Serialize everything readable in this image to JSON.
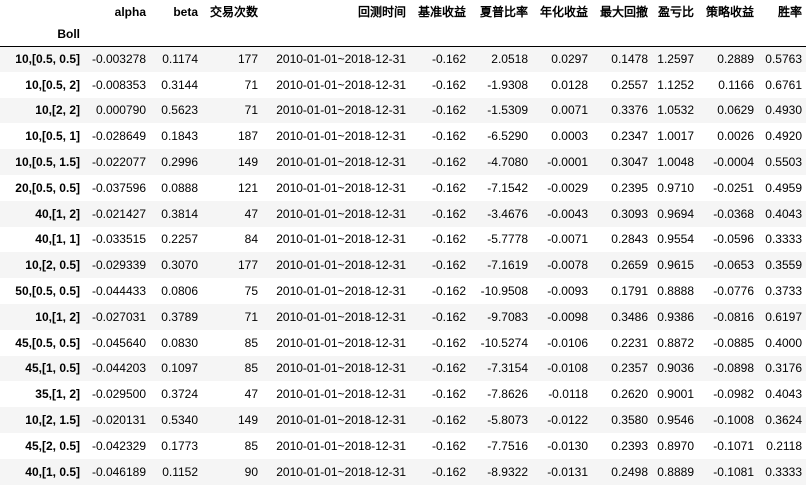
{
  "table": {
    "columns": [
      "alpha",
      "beta",
      "交易次数",
      "回测时间",
      "基准收益",
      "夏普比率",
      "年化收益",
      "最大回撤",
      "盈亏比",
      "策略收益",
      "胜率"
    ],
    "index_name": "Boll",
    "rows": [
      {
        "index": "10,[0.5, 0.5]",
        "cells": [
          "-0.003278",
          "0.1174",
          "177",
          "2010-01-01~2018-12-31",
          "-0.162",
          "2.0518",
          "0.0297",
          "0.1478",
          "1.2597",
          "0.2889",
          "0.5763"
        ]
      },
      {
        "index": "10,[0.5, 2]",
        "cells": [
          "-0.008353",
          "0.3144",
          "71",
          "2010-01-01~2018-12-31",
          "-0.162",
          "-1.9308",
          "0.0128",
          "0.2557",
          "1.1252",
          "0.1166",
          "0.6761"
        ]
      },
      {
        "index": "10,[2, 2]",
        "cells": [
          "0.000790",
          "0.5623",
          "71",
          "2010-01-01~2018-12-31",
          "-0.162",
          "-1.5309",
          "0.0071",
          "0.3376",
          "1.0532",
          "0.0629",
          "0.4930"
        ]
      },
      {
        "index": "10,[0.5, 1]",
        "cells": [
          "-0.028649",
          "0.1843",
          "187",
          "2010-01-01~2018-12-31",
          "-0.162",
          "-6.5290",
          "0.0003",
          "0.2347",
          "1.0017",
          "0.0026",
          "0.4920"
        ]
      },
      {
        "index": "10,[0.5, 1.5]",
        "cells": [
          "-0.022077",
          "0.2996",
          "149",
          "2010-01-01~2018-12-31",
          "-0.162",
          "-4.7080",
          "-0.0001",
          "0.3047",
          "1.0048",
          "-0.0004",
          "0.5503"
        ]
      },
      {
        "index": "20,[0.5, 0.5]",
        "cells": [
          "-0.037596",
          "0.0888",
          "121",
          "2010-01-01~2018-12-31",
          "-0.162",
          "-7.1542",
          "-0.0029",
          "0.2395",
          "0.9710",
          "-0.0251",
          "0.4959"
        ]
      },
      {
        "index": "40,[1, 2]",
        "cells": [
          "-0.021427",
          "0.3814",
          "47",
          "2010-01-01~2018-12-31",
          "-0.162",
          "-3.4676",
          "-0.0043",
          "0.3093",
          "0.9694",
          "-0.0368",
          "0.4043"
        ]
      },
      {
        "index": "40,[1, 1]",
        "cells": [
          "-0.033515",
          "0.2257",
          "84",
          "2010-01-01~2018-12-31",
          "-0.162",
          "-5.7778",
          "-0.0071",
          "0.2843",
          "0.9554",
          "-0.0596",
          "0.3333"
        ]
      },
      {
        "index": "10,[2, 0.5]",
        "cells": [
          "-0.029339",
          "0.3070",
          "177",
          "2010-01-01~2018-12-31",
          "-0.162",
          "-7.1619",
          "-0.0078",
          "0.2659",
          "0.9615",
          "-0.0653",
          "0.3559"
        ]
      },
      {
        "index": "50,[0.5, 0.5]",
        "cells": [
          "-0.044433",
          "0.0806",
          "75",
          "2010-01-01~2018-12-31",
          "-0.162",
          "-10.9508",
          "-0.0093",
          "0.1791",
          "0.8888",
          "-0.0776",
          "0.3733"
        ]
      },
      {
        "index": "10,[1, 2]",
        "cells": [
          "-0.027031",
          "0.3789",
          "71",
          "2010-01-01~2018-12-31",
          "-0.162",
          "-9.7083",
          "-0.0098",
          "0.3486",
          "0.9386",
          "-0.0816",
          "0.6197"
        ]
      },
      {
        "index": "45,[0.5, 0.5]",
        "cells": [
          "-0.045640",
          "0.0830",
          "85",
          "2010-01-01~2018-12-31",
          "-0.162",
          "-10.5274",
          "-0.0106",
          "0.2231",
          "0.8872",
          "-0.0885",
          "0.4000"
        ]
      },
      {
        "index": "45,[1, 0.5]",
        "cells": [
          "-0.044203",
          "0.1097",
          "85",
          "2010-01-01~2018-12-31",
          "-0.162",
          "-7.3154",
          "-0.0108",
          "0.2357",
          "0.9036",
          "-0.0898",
          "0.3176"
        ]
      },
      {
        "index": "35,[1, 2]",
        "cells": [
          "-0.029500",
          "0.3724",
          "47",
          "2010-01-01~2018-12-31",
          "-0.162",
          "-7.8626",
          "-0.0118",
          "0.2620",
          "0.9001",
          "-0.0982",
          "0.4043"
        ]
      },
      {
        "index": "10,[2, 1.5]",
        "cells": [
          "-0.020131",
          "0.5340",
          "149",
          "2010-01-01~2018-12-31",
          "-0.162",
          "-5.8073",
          "-0.0122",
          "0.3580",
          "0.9546",
          "-0.1008",
          "0.3624"
        ]
      },
      {
        "index": "45,[2, 0.5]",
        "cells": [
          "-0.042329",
          "0.1773",
          "85",
          "2010-01-01~2018-12-31",
          "-0.162",
          "-7.7516",
          "-0.0130",
          "0.2393",
          "0.8970",
          "-0.1071",
          "0.2118"
        ]
      },
      {
        "index": "40,[1, 0.5]",
        "cells": [
          "-0.046189",
          "0.1152",
          "90",
          "2010-01-01~2018-12-31",
          "-0.162",
          "-8.9322",
          "-0.0131",
          "0.2498",
          "0.8889",
          "-0.1081",
          "0.3333"
        ]
      }
    ]
  }
}
